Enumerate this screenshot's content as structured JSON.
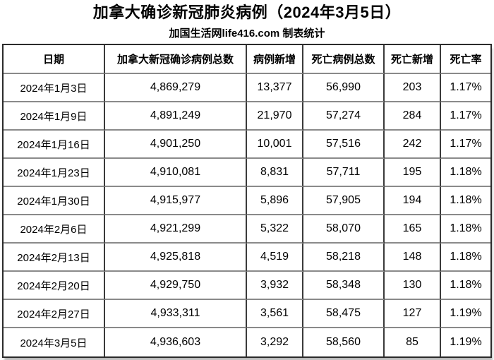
{
  "page": {
    "title": "加拿大确诊新冠肺炎病例（2024年3月5日）",
    "subtitle": "加国生活网life416.com 制表统计"
  },
  "colors": {
    "background": "#ffffff",
    "text": "#000000",
    "outer_border": "#2b2b2b",
    "vertical_border": "#3a3a3a",
    "horizontal_border": "#8a8a8a"
  },
  "chart_data": {
    "type": "table",
    "title": "加拿大确诊新冠肺炎病例（2024年3月5日）",
    "subtitle": "加国生活网life416.com 制表统计",
    "columns": [
      "日期",
      "加拿大新冠确诊病例总数",
      "病例新增",
      "死亡病例总数",
      "死亡新增",
      "死亡率"
    ],
    "rows": [
      [
        "2024年1月3日",
        "4,869,279",
        "13,377",
        "56,990",
        "203",
        "1.17%"
      ],
      [
        "2024年1月9日",
        "4,891,249",
        "21,970",
        "57,274",
        "284",
        "1.17%"
      ],
      [
        "2024年1月16日",
        "4,901,250",
        "10,001",
        "57,516",
        "242",
        "1.17%"
      ],
      [
        "2024年1月23日",
        "4,910,081",
        "8,831",
        "57,711",
        "195",
        "1.18%"
      ],
      [
        "2024年1月30日",
        "4,915,977",
        "5,896",
        "57,905",
        "194",
        "1.18%"
      ],
      [
        "2024年2月6日",
        "4,921,299",
        "5,322",
        "58,070",
        "165",
        "1.18%"
      ],
      [
        "2024年2月13日",
        "4,925,818",
        "4,519",
        "58,218",
        "148",
        "1.18%"
      ],
      [
        "2024年2月20日",
        "4,929,750",
        "3,932",
        "58,348",
        "130",
        "1.18%"
      ],
      [
        "2024年2月27日",
        "4,933,311",
        "3,561",
        "58,475",
        "127",
        "1.19%"
      ],
      [
        "2024年3月5日",
        "4,936,603",
        "3,292",
        "58,560",
        "85",
        "1.19%"
      ]
    ]
  }
}
